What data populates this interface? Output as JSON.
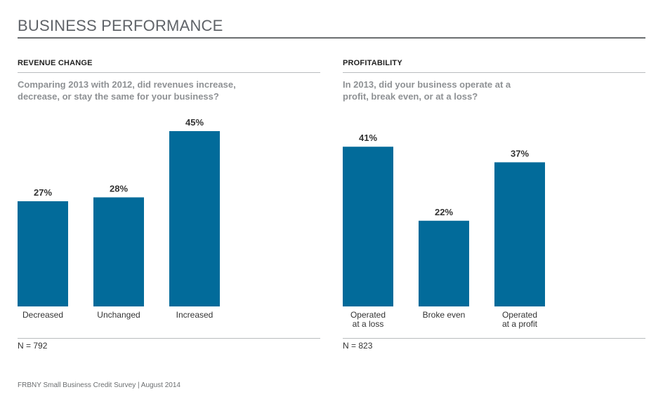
{
  "page": {
    "title": "BUSINESS PERFORMANCE",
    "footer": "FRBNY Small Business Credit Survey  |  August 2014"
  },
  "chart_data": [
    {
      "type": "bar",
      "panel_title": "REVENUE CHANGE",
      "question": "Comparing 2013 with 2012, did revenues increase, decrease, or stay the same for your business?",
      "categories": [
        [
          "Decreased"
        ],
        [
          "Unchanged"
        ],
        [
          "Increased"
        ]
      ],
      "values": [
        27,
        28,
        45
      ],
      "value_labels": [
        "27%",
        "28%",
        "45%"
      ],
      "ylim": [
        0,
        45
      ],
      "n_label": "N = 792",
      "bar_color": "#026b9a"
    },
    {
      "type": "bar",
      "panel_title": "PROFITABILITY",
      "question": "In 2013, did your business operate at a profit, break even, or at a loss?",
      "categories": [
        [
          "Operated",
          "at a loss"
        ],
        [
          "Broke even"
        ],
        [
          "Operated",
          "at a profit"
        ]
      ],
      "values": [
        41,
        22,
        37
      ],
      "value_labels": [
        "41%",
        "22%",
        "37%"
      ],
      "ylim": [
        0,
        45
      ],
      "n_label": "N = 823",
      "bar_color": "#026b9a"
    }
  ]
}
